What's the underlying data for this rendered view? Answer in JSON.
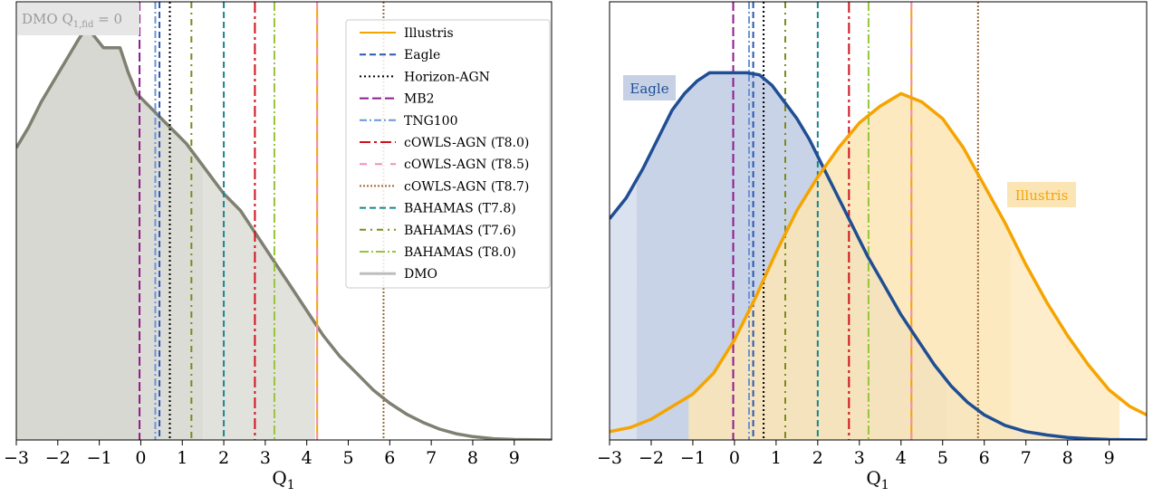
{
  "chart_data": [
    {
      "type": "area",
      "panel": "left",
      "annotation": "DMO Q",
      "annotation_sub": "1,fid",
      "annotation_tail": " = 0",
      "xlabel": "Q",
      "xlabel_sub": "1",
      "ylabel": "",
      "xlim": [
        -3,
        9.9
      ],
      "ylim": [
        0,
        1.05
      ],
      "xticks": [
        -3,
        -2,
        -1,
        0,
        1,
        2,
        3,
        4,
        5,
        6,
        7,
        8,
        9
      ],
      "y_ticks_shown": false,
      "legend_position": "top-right",
      "series": [
        {
          "name": "DMO",
          "color": "#7f7f72",
          "fill": "#d8d8d2",
          "x": [
            -3,
            -2.7,
            -2.4,
            -2.1,
            -1.8,
            -1.5,
            -1.3,
            -1.1,
            -0.9,
            -0.7,
            -0.5,
            -0.3,
            -0.1,
            0.2,
            0.5,
            0.8,
            1.1,
            1.4,
            1.7,
            2.0,
            2.4,
            2.8,
            3.2,
            3.6,
            4.0,
            4.4,
            4.8,
            5.2,
            5.6,
            6.0,
            6.4,
            6.8,
            7.2,
            7.6,
            8.0,
            8.5,
            9.0,
            9.9
          ],
          "y": [
            0.7,
            0.75,
            0.81,
            0.86,
            0.91,
            0.96,
            0.99,
            0.965,
            0.94,
            0.94,
            0.94,
            0.88,
            0.83,
            0.8,
            0.77,
            0.74,
            0.71,
            0.67,
            0.63,
            0.59,
            0.55,
            0.49,
            0.43,
            0.37,
            0.31,
            0.25,
            0.2,
            0.16,
            0.12,
            0.088,
            0.062,
            0.042,
            0.026,
            0.015,
            0.008,
            0.003,
            0.001,
            0.0
          ],
          "bands": [
            [
              -3,
              -0.05
            ],
            [
              -0.05,
              1.5
            ],
            [
              1.5,
              4.2
            ]
          ]
        }
      ]
    },
    {
      "type": "area",
      "panel": "right",
      "xlabel": "Q",
      "xlabel_sub": "1",
      "ylabel": "",
      "xlim": [
        -3,
        9.9
      ],
      "ylim": [
        0,
        1.05
      ],
      "xticks": [
        -3,
        -2,
        -1,
        0,
        1,
        2,
        3,
        4,
        5,
        6,
        7,
        8,
        9
      ],
      "y_ticks_shown": false,
      "series": [
        {
          "name": "Eagle",
          "label": "Eagle",
          "color": "#1f4e94",
          "fill": "#c6d1e6",
          "x": [
            -3,
            -2.6,
            -2.2,
            -1.8,
            -1.5,
            -1.2,
            -0.9,
            -0.6,
            -0.3,
            0,
            0.3,
            0.6,
            0.9,
            1.2,
            1.5,
            1.8,
            2.1,
            2.4,
            2.8,
            3.2,
            3.6,
            4.0,
            4.4,
            4.8,
            5.2,
            5.6,
            6.0,
            6.5,
            7.0,
            7.5,
            8.0,
            8.5,
            9.0,
            9.9
          ],
          "y": [
            0.53,
            0.58,
            0.65,
            0.73,
            0.79,
            0.83,
            0.86,
            0.88,
            0.88,
            0.88,
            0.88,
            0.875,
            0.85,
            0.81,
            0.77,
            0.72,
            0.66,
            0.6,
            0.52,
            0.44,
            0.37,
            0.3,
            0.24,
            0.18,
            0.13,
            0.09,
            0.06,
            0.035,
            0.02,
            0.012,
            0.006,
            0.003,
            0.001,
            0.0
          ],
          "bands": [
            [
              -3,
              -2.35
            ],
            [
              -2.35,
              5.1
            ],
            [
              5.1,
              9.9
            ]
          ]
        },
        {
          "name": "Illustris",
          "label": "Illustris",
          "color": "#f5a400",
          "fill": "#fce5b5",
          "x": [
            -3,
            -2.5,
            -2.0,
            -1.5,
            -1.0,
            -0.5,
            0,
            0.5,
            1.0,
            1.5,
            2.0,
            2.5,
            3.0,
            3.5,
            4.0,
            4.5,
            5.0,
            5.5,
            6.0,
            6.5,
            7.0,
            7.5,
            8.0,
            8.5,
            9.0,
            9.5,
            9.9
          ],
          "y": [
            0.02,
            0.03,
            0.05,
            0.08,
            0.11,
            0.16,
            0.24,
            0.34,
            0.45,
            0.55,
            0.63,
            0.7,
            0.76,
            0.8,
            0.83,
            0.81,
            0.77,
            0.7,
            0.61,
            0.52,
            0.42,
            0.33,
            0.25,
            0.18,
            0.12,
            0.08,
            0.06
          ],
          "bands": [
            [
              -1.1,
              6.65
            ],
            [
              6.65,
              9.25
            ]
          ]
        }
      ]
    }
  ],
  "vlines": [
    {
      "name": "Illustris",
      "x": 4.25,
      "color": "#f5a400",
      "dash": ""
    },
    {
      "name": "Eagle",
      "x": 0.45,
      "color": "#2a56b0",
      "dash": "7,4"
    },
    {
      "name": "Horizon-AGN",
      "x": 0.7,
      "color": "#000000",
      "dash": "2,3"
    },
    {
      "name": "MB2",
      "x": -0.03,
      "color": "#8c1a8c",
      "dash": "10,4"
    },
    {
      "name": "TNG100",
      "x": 0.35,
      "color": "#6a96d8",
      "dash": "8,3,2,3"
    },
    {
      "name": "cOWLS-AGN (T8.0)",
      "x": 2.75,
      "color": "#d0121b",
      "dash": "12,4,3,4"
    },
    {
      "name": "cOWLS-AGN (T8.5)",
      "x": 4.25,
      "color": "#f08ec4",
      "dash": "8,9"
    },
    {
      "name": "cOWLS-AGN (T8.7)",
      "x": 5.85,
      "color": "#9c6a3a",
      "dash": "2,2"
    },
    {
      "name": "BAHAMAS (T7.8)",
      "x": 2.0,
      "color": "#16868c",
      "dash": "7,4"
    },
    {
      "name": "BAHAMAS (T7.6)",
      "x": 1.22,
      "color": "#7d8a1a",
      "dash": "7,5,2,5"
    },
    {
      "name": "BAHAMAS (T8.0)",
      "x": 3.22,
      "color": "#97c53a",
      "dash": "10,3,2,3"
    },
    {
      "name": "DMO",
      "x": null,
      "color": "#bdbdbd",
      "dash": ""
    }
  ],
  "legend": {
    "entries": [
      "Illustris",
      "Eagle",
      "Horizon-AGN",
      "MB2",
      "TNG100",
      "cOWLS-AGN (T8.0)",
      "cOWLS-AGN (T8.5)",
      "cOWLS-AGN (T8.7)",
      "BAHAMAS (T7.8)",
      "BAHAMAS (T7.6)",
      "BAHAMAS (T8.0)",
      "DMO"
    ]
  }
}
